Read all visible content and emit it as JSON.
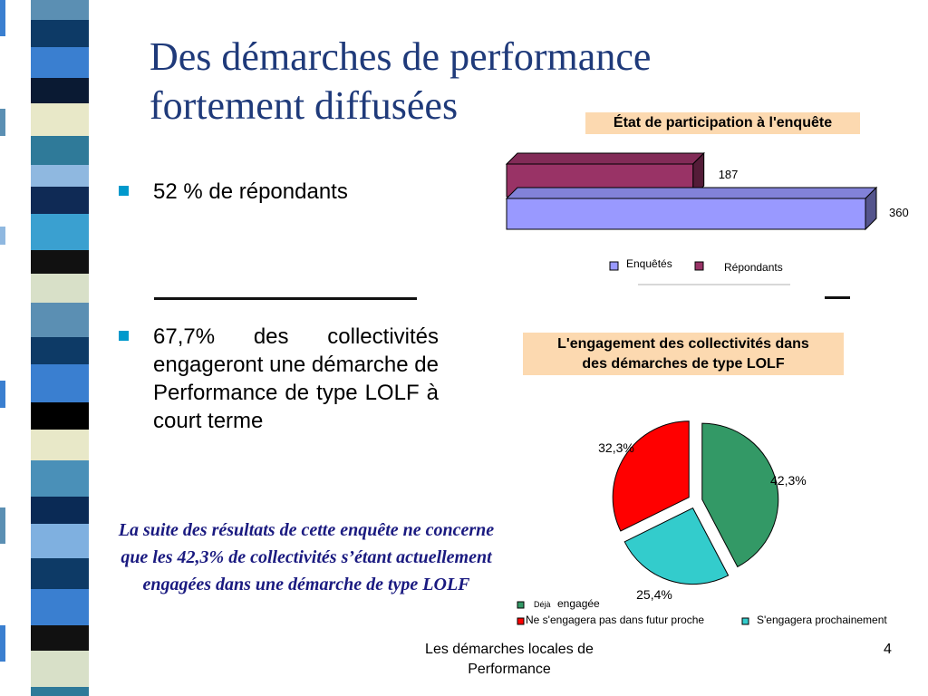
{
  "slide": {
    "title_line1": "Des démarches de performance",
    "title_line2": "fortement diffusées",
    "bullet1": "52 % de répondants",
    "bullet2": "67,7% des collectivités engageront une démarche de Performance de type LOLF à court terme",
    "note": "La suite des résultats de cette enquête ne concerne que les 42,3% de collectivités s’étant actuellement engagées dans une démarche de type LOLF",
    "footer_line1": "Les démarches locales de",
    "footer_line2": "Performance",
    "page_number": "4"
  },
  "chart_data": [
    {
      "type": "bar",
      "orientation": "horizontal",
      "three_d": true,
      "title": "État de participation à l'enquête",
      "series": [
        {
          "name": "Répondants",
          "value": 187,
          "label": "187",
          "color": "#993366"
        },
        {
          "name": "Enquêtés",
          "value": 360,
          "label": "360",
          "color": "#9999ff"
        }
      ],
      "legend": [
        "Enquêtés",
        "Répondants"
      ],
      "legend_position": "bottom",
      "grid": false
    },
    {
      "type": "pie",
      "title_line1": "L'engagement des collectivités dans",
      "title_line2": "des démarches de type LOLF",
      "slices": [
        {
          "name": "Déjà engagée",
          "value": 42.3,
          "label": "42,3%",
          "color": "#339966"
        },
        {
          "name": "S'engagera prochainement",
          "value": 25.4,
          "label": "25,4%",
          "color": "#33cccc"
        },
        {
          "name": "Ne s'engagera pas dans futur proche",
          "value": 32.3,
          "label": "32,3%",
          "color": "#ff0000"
        }
      ],
      "legend_items": {
        "deja_small": "Déjà",
        "deja_rest": "engagée",
        "ne_pas": "Ne s'engagera pas dans futur proche",
        "prochainement": "S'engagera prochainement"
      },
      "legend_position": "bottom"
    }
  ],
  "colors": {
    "title": "#1f3a7a",
    "bullet_marker": "#0099cc",
    "note": "#1a1a80",
    "chart_title_bg": "#fcd9b0"
  }
}
